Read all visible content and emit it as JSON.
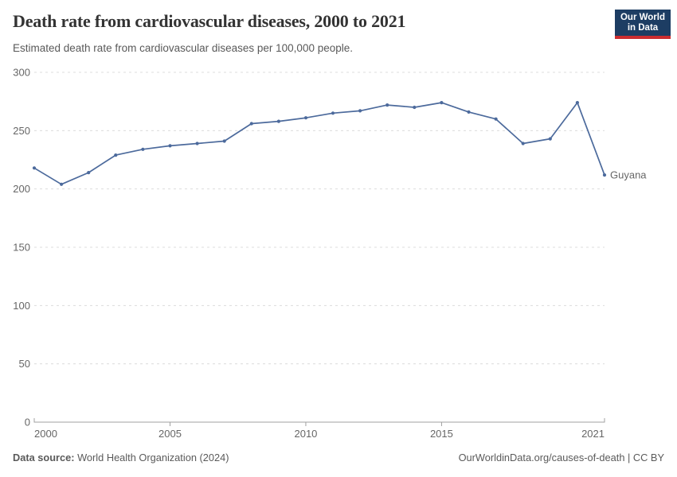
{
  "header": {
    "logo": {
      "line1": "Our World",
      "line2": "in Data",
      "bg_color": "#1d3d63",
      "accent_color": "#cb2d30"
    }
  },
  "footer": {
    "source_label": "Data source:",
    "source_value": " World Health Organization (2024)",
    "link": "OurWorldinData.org/causes-of-death | CC BY"
  },
  "chart_data": {
    "type": "line",
    "title": "Death rate from cardiovascular diseases, 2000 to 2021",
    "subtitle": "Estimated death rate from cardiovascular diseases per 100,000 people.",
    "x": [
      2000,
      2001,
      2002,
      2003,
      2004,
      2005,
      2006,
      2007,
      2008,
      2009,
      2010,
      2011,
      2012,
      2013,
      2014,
      2015,
      2016,
      2017,
      2018,
      2019,
      2020,
      2021
    ],
    "series": [
      {
        "name": "Guyana",
        "color": "#4c6a9c",
        "values": [
          218,
          204,
          214,
          229,
          234,
          237,
          239,
          241,
          256,
          258,
          261,
          265,
          267,
          272,
          270,
          274,
          266,
          260,
          239,
          243,
          274,
          212
        ]
      }
    ],
    "xticks": [
      2000,
      2005,
      2010,
      2015,
      2021
    ],
    "yticks": [
      0,
      50,
      100,
      150,
      200,
      250,
      300
    ],
    "ylim": [
      0,
      300
    ],
    "xlabel": "",
    "ylabel": "",
    "grid": "horizontal-dashed",
    "legend_position": "end-of-line-label",
    "gridline_color": "#dcdcdc",
    "axis_color": "#a0a0a0",
    "tick_label_color": "#666666"
  }
}
